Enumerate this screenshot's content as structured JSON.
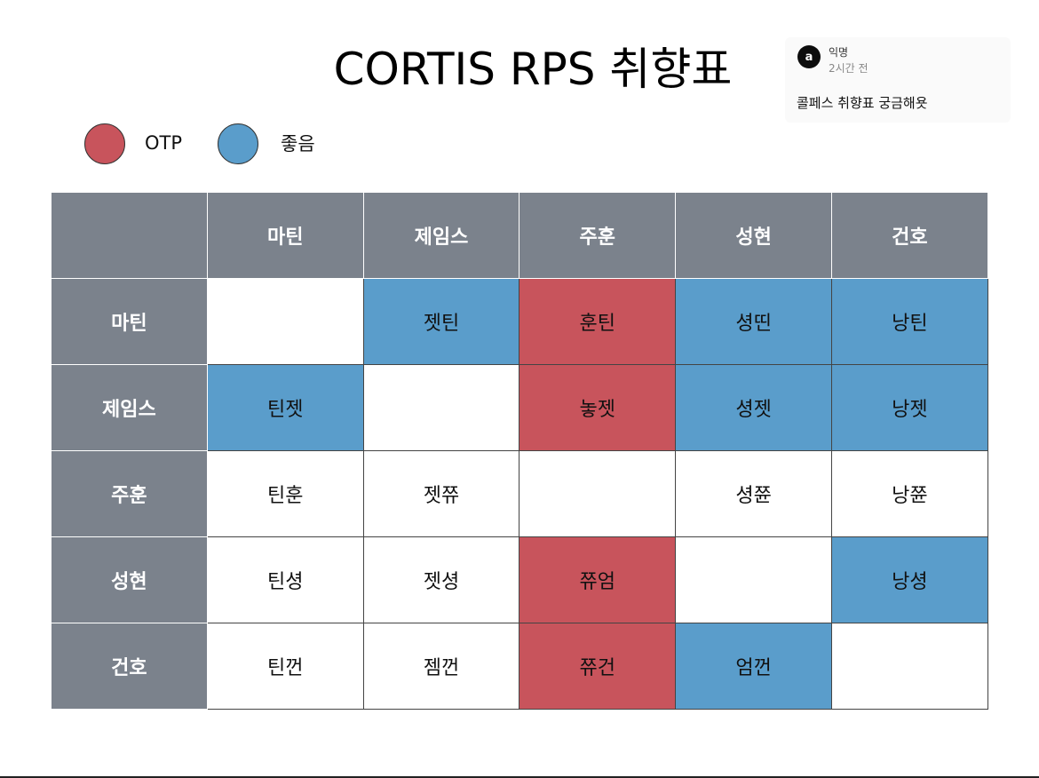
{
  "title": "CORTIS RPS 취향표",
  "comment": {
    "avatar_glyph": "a",
    "author": "익명",
    "time": "2시간 전",
    "text": "콜페스 취향표 궁금해욧"
  },
  "legend": [
    {
      "label": "OTP",
      "color": "#c8545c"
    },
    {
      "label": "좋음",
      "color": "#5a9dcb"
    }
  ],
  "table": {
    "corner": "",
    "columns": [
      "마틴",
      "제임스",
      "주훈",
      "성현",
      "건호"
    ],
    "rows": [
      {
        "label": "마틴",
        "cells": [
          {
            "text": "",
            "tag": "none"
          },
          {
            "text": "젯틴",
            "tag": "good"
          },
          {
            "text": "훈틴",
            "tag": "otp"
          },
          {
            "text": "셩띤",
            "tag": "good"
          },
          {
            "text": "낭틴",
            "tag": "good"
          }
        ]
      },
      {
        "label": "제임스",
        "cells": [
          {
            "text": "틴젯",
            "tag": "good"
          },
          {
            "text": "",
            "tag": "none"
          },
          {
            "text": "놓젯",
            "tag": "otp"
          },
          {
            "text": "셩젯",
            "tag": "good"
          },
          {
            "text": "낭젯",
            "tag": "good"
          }
        ]
      },
      {
        "label": "주훈",
        "cells": [
          {
            "text": "틴훈",
            "tag": "none"
          },
          {
            "text": "젯쮸",
            "tag": "none"
          },
          {
            "text": "",
            "tag": "none"
          },
          {
            "text": "셩쮼",
            "tag": "none"
          },
          {
            "text": "낭쮼",
            "tag": "none"
          }
        ]
      },
      {
        "label": "성현",
        "cells": [
          {
            "text": "틴셩",
            "tag": "none"
          },
          {
            "text": "젯셩",
            "tag": "none"
          },
          {
            "text": "쮸엄",
            "tag": "otp"
          },
          {
            "text": "",
            "tag": "none"
          },
          {
            "text": "낭셩",
            "tag": "good"
          }
        ]
      },
      {
        "label": "건호",
        "cells": [
          {
            "text": "틴껀",
            "tag": "none"
          },
          {
            "text": "젬껀",
            "tag": "none"
          },
          {
            "text": "쮸건",
            "tag": "otp"
          },
          {
            "text": "엄껀",
            "tag": "good"
          },
          {
            "text": "",
            "tag": "none"
          }
        ]
      }
    ]
  }
}
